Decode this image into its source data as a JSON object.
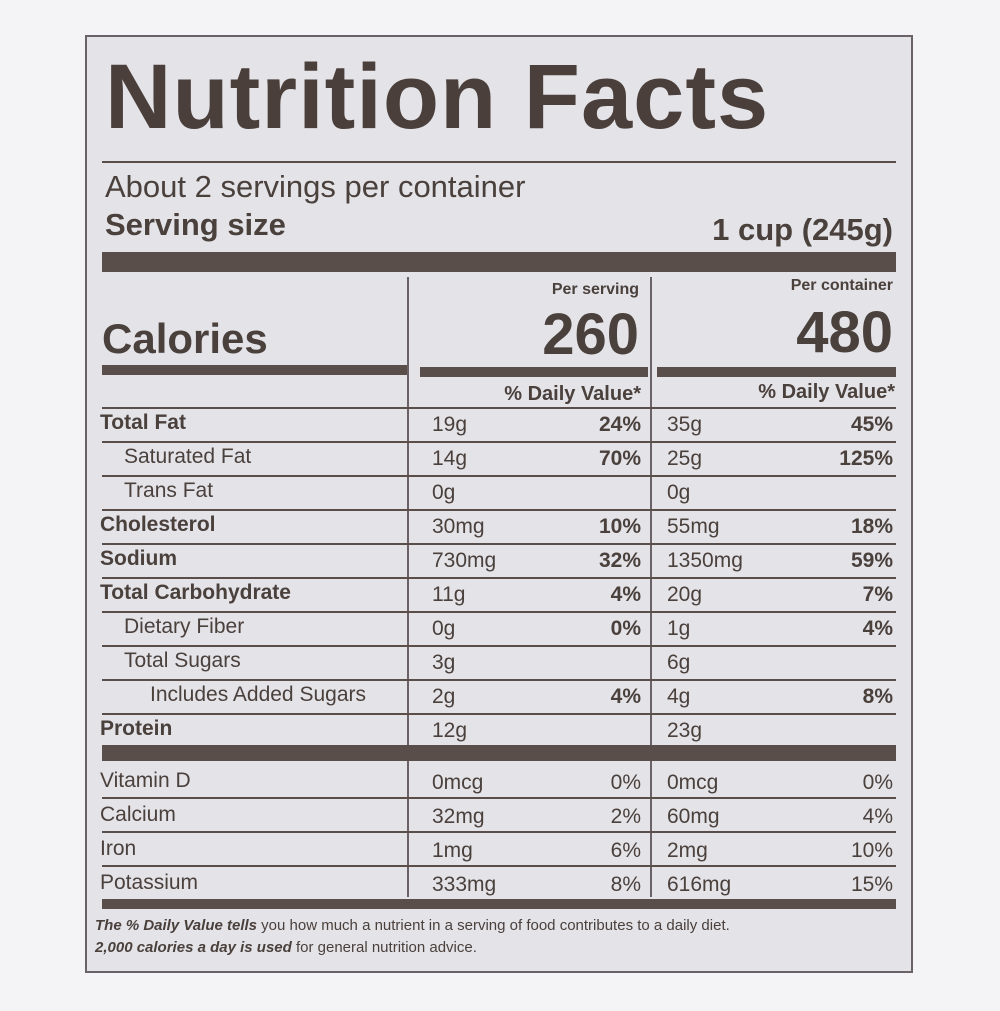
{
  "title": "Nutrition Facts",
  "servings_per_container": "About 2 servings per container",
  "serving_size_label": "Serving size",
  "serving_size_value": "1 cup (245g)",
  "columns": {
    "per_serving": "Per serving",
    "per_container": "Per container"
  },
  "calories_label": "Calories",
  "calories_per_serving": "260",
  "calories_per_container": "480",
  "dv_header": "% Daily Value*",
  "nutrients": [
    {
      "name": "Total Fat",
      "bold": true,
      "indent": 0,
      "s_amt": "19g",
      "s_dv": "24%",
      "c_amt": "35g",
      "c_dv": "45%"
    },
    {
      "name": "Saturated Fat",
      "bold": false,
      "indent": 1,
      "s_amt": "14g",
      "s_dv": "70%",
      "c_amt": "25g",
      "c_dv": "125%"
    },
    {
      "name": "Trans Fat",
      "bold": false,
      "indent": 1,
      "s_amt": "0g",
      "s_dv": "",
      "c_amt": "0g",
      "c_dv": ""
    },
    {
      "name": "Cholesterol",
      "bold": true,
      "indent": 0,
      "s_amt": "30mg",
      "s_dv": "10%",
      "c_amt": "55mg",
      "c_dv": "18%"
    },
    {
      "name": "Sodium",
      "bold": true,
      "indent": 0,
      "s_amt": "730mg",
      "s_dv": "32%",
      "c_amt": "1350mg",
      "c_dv": "59%"
    },
    {
      "name": "Total Carbohydrate",
      "bold": true,
      "indent": 0,
      "s_amt": "11g",
      "s_dv": "4%",
      "c_amt": "20g",
      "c_dv": "7%"
    },
    {
      "name": "Dietary Fiber",
      "bold": false,
      "indent": 1,
      "s_amt": "0g",
      "s_dv": "0%",
      "c_amt": "1g",
      "c_dv": "4%"
    },
    {
      "name": "Total Sugars",
      "bold": false,
      "indent": 1,
      "s_amt": "3g",
      "s_dv": "",
      "c_amt": "6g",
      "c_dv": ""
    },
    {
      "name": "Includes Added Sugars",
      "bold": false,
      "indent": 2,
      "s_amt": "2g",
      "s_dv": "4%",
      "c_amt": "4g",
      "c_dv": "8%"
    },
    {
      "name": "Protein",
      "bold": true,
      "indent": 0,
      "s_amt": "12g",
      "s_dv": "",
      "c_amt": "23g",
      "c_dv": ""
    }
  ],
  "vitamins": [
    {
      "name": "Vitamin D",
      "s_amt": "0mcg",
      "s_dv": "0%",
      "c_amt": "0mcg",
      "c_dv": "0%"
    },
    {
      "name": "Calcium",
      "s_amt": "32mg",
      "s_dv": "2%",
      "c_amt": "60mg",
      "c_dv": "4%"
    },
    {
      "name": "Iron",
      "s_amt": "1mg",
      "s_dv": "6%",
      "c_amt": "2mg",
      "c_dv": "10%"
    },
    {
      "name": "Potassium",
      "s_amt": "333mg",
      "s_dv": "8%",
      "c_amt": "616mg",
      "c_dv": "15%"
    }
  ],
  "footnote": {
    "line1_em": "The % Daily Value tells",
    "line1_rest": " you how much a nutrient in a serving of food contributes to a daily diet.",
    "line2_em": "2,000 calories a day is used",
    "line2_rest": " for general nutrition advice."
  }
}
